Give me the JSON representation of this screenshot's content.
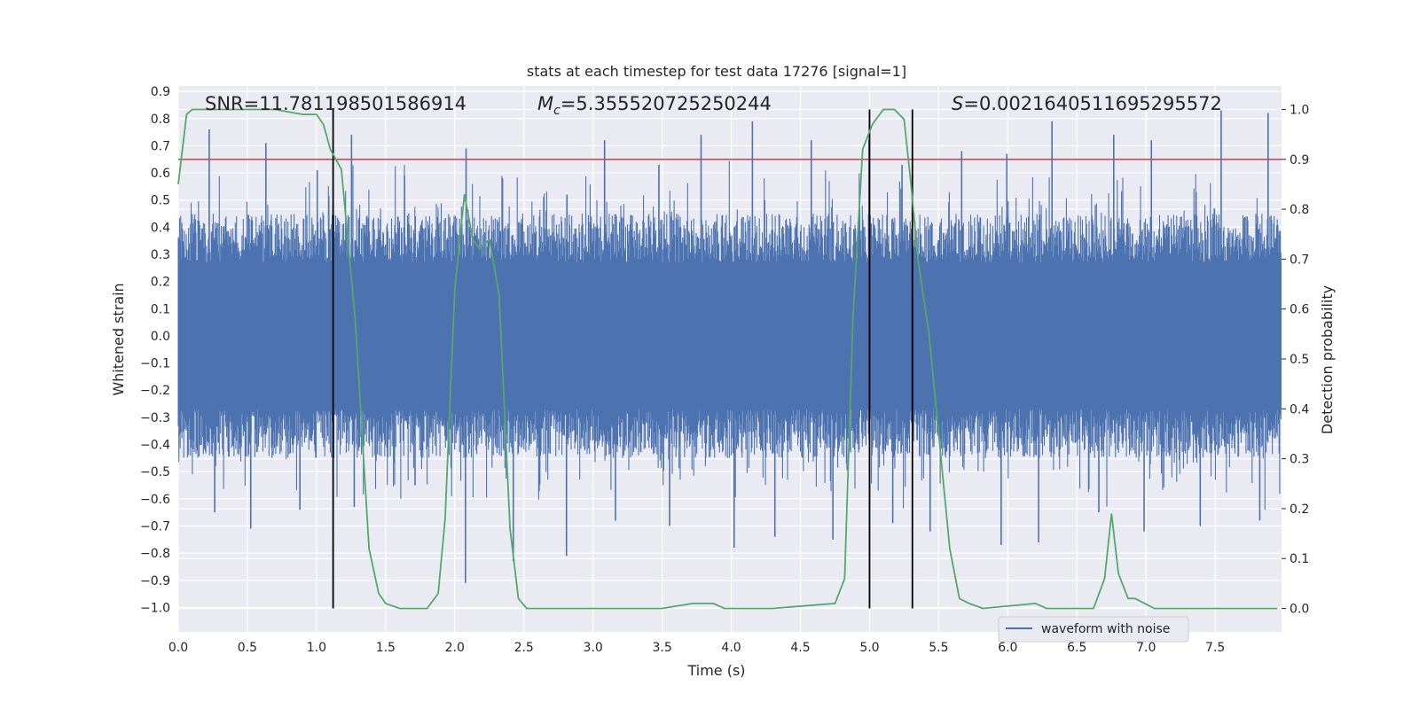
{
  "chart_data": {
    "type": "line",
    "title": "stats at each timestep for test data 17276 [signal=1]",
    "xlabel": "Time (s)",
    "ylabel": "Whitened strain",
    "y2label": "Detection probability",
    "xlim": [
      0.0,
      7.98
    ],
    "ylim": [
      -1.09,
      0.92
    ],
    "y2lim": [
      -0.047,
      1.047
    ],
    "x_ticks": [
      0.0,
      0.5,
      1.0,
      1.5,
      2.0,
      2.5,
      3.0,
      3.5,
      4.0,
      4.5,
      5.0,
      5.5,
      6.0,
      6.5,
      7.0,
      7.5
    ],
    "x_tick_labels": [
      "0.0",
      "0.5",
      "1.0",
      "1.5",
      "2.0",
      "2.5",
      "3.0",
      "3.5",
      "4.0",
      "4.5",
      "5.0",
      "5.5",
      "6.0",
      "6.5",
      "7.0",
      "7.5"
    ],
    "y_ticks": [
      0.9,
      0.8,
      0.7,
      0.6,
      0.5,
      0.4,
      0.3,
      0.2,
      0.1,
      0.0,
      -0.1,
      -0.2,
      -0.3,
      -0.4,
      -0.5,
      -0.6,
      -0.7,
      -0.8,
      -0.9,
      -1.0
    ],
    "y_tick_labels": [
      "0.9",
      "0.8",
      "0.7",
      "0.6",
      "0.5",
      "0.4",
      "0.3",
      "0.2",
      "0.1",
      "0.0",
      "−0.1",
      "−0.2",
      "−0.3",
      "−0.4",
      "−0.5",
      "−0.6",
      "−0.7",
      "−0.8",
      "−0.9",
      "−1.0"
    ],
    "y2_ticks": [
      1.0,
      0.9,
      0.8,
      0.7,
      0.6,
      0.5,
      0.4,
      0.3,
      0.2,
      0.1,
      0.0
    ],
    "y2_tick_labels": [
      "1.0",
      "0.9",
      "0.8",
      "0.7",
      "0.6",
      "0.5",
      "0.4",
      "0.3",
      "0.2",
      "0.1",
      "0.0"
    ],
    "grid": true,
    "legend_placement": "lower-right",
    "annotations": [
      {
        "prefix": "SNR",
        "value": "=11.781198501586914"
      },
      {
        "prefix": "M",
        "sub": "c",
        "value": "=5.355520725250244"
      },
      {
        "prefix": "S",
        "value": "=0.0021640511695295572"
      }
    ],
    "series": [
      {
        "name": "waveform with noise",
        "kind": "noise-band",
        "color": "#4c72b0",
        "core_envelope": 0.27,
        "spike_peaks": [
          0.76,
          0.71,
          0.61,
          0.74,
          0.59,
          0.69,
          0.58,
          0.52,
          0.72,
          0.63,
          0.74,
          0.79,
          0.72,
          0.72,
          0.63,
          0.68,
          0.67,
          0.79,
          0.74,
          0.72,
          0.83,
          0.82
        ],
        "spike_troughs": [
          -0.65,
          -0.71,
          -0.64,
          -0.63,
          -0.55,
          -0.91,
          -0.83,
          -0.81,
          -0.68,
          -0.7,
          -0.78,
          -0.74,
          -0.75,
          -0.69,
          -0.72,
          -0.77,
          -0.76,
          -0.65,
          -0.72,
          -0.7,
          -0.68
        ]
      },
      {
        "name": "",
        "kind": "probability",
        "axis": "right",
        "color": "#55a868",
        "x": [
          0.0,
          0.06,
          0.1,
          0.2,
          0.4,
          0.7,
          0.9,
          1.0,
          1.05,
          1.1,
          1.18,
          1.28,
          1.38,
          1.45,
          1.5,
          1.6,
          1.8,
          1.88,
          1.93,
          2.0,
          2.07,
          2.13,
          2.18,
          2.25,
          2.32,
          2.4,
          2.46,
          2.52,
          2.6,
          3.0,
          3.5,
          3.72,
          3.87,
          3.95,
          4.3,
          4.75,
          4.82,
          4.88,
          4.95,
          5.02,
          5.1,
          5.18,
          5.25,
          5.3,
          5.35,
          5.43,
          5.5,
          5.58,
          5.65,
          5.72,
          5.82,
          6.2,
          6.28,
          6.62,
          6.7,
          6.75,
          6.8,
          6.87,
          6.92,
          7.06,
          7.5,
          7.95
        ],
        "y": [
          0.85,
          0.99,
          1.0,
          1.0,
          1.0,
          1.0,
          0.99,
          0.99,
          0.97,
          0.92,
          0.88,
          0.58,
          0.12,
          0.03,
          0.01,
          0.0,
          0.0,
          0.03,
          0.18,
          0.64,
          0.83,
          0.74,
          0.72,
          0.74,
          0.63,
          0.16,
          0.02,
          0.0,
          0.0,
          0.0,
          0.0,
          0.01,
          0.01,
          0.0,
          0.0,
          0.01,
          0.06,
          0.58,
          0.92,
          0.97,
          1.0,
          1.0,
          0.98,
          0.85,
          0.7,
          0.55,
          0.35,
          0.12,
          0.02,
          0.01,
          0.0,
          0.01,
          0.0,
          0.0,
          0.06,
          0.19,
          0.07,
          0.02,
          0.02,
          0.0,
          0.0,
          0.0
        ]
      },
      {
        "name": "",
        "kind": "threshold",
        "axis": "right",
        "color": "#c44e52",
        "y": 0.9
      },
      {
        "name": "",
        "kind": "vertical-markers",
        "color": "#000000",
        "x": [
          1.12,
          5.0,
          5.31
        ]
      }
    ]
  }
}
